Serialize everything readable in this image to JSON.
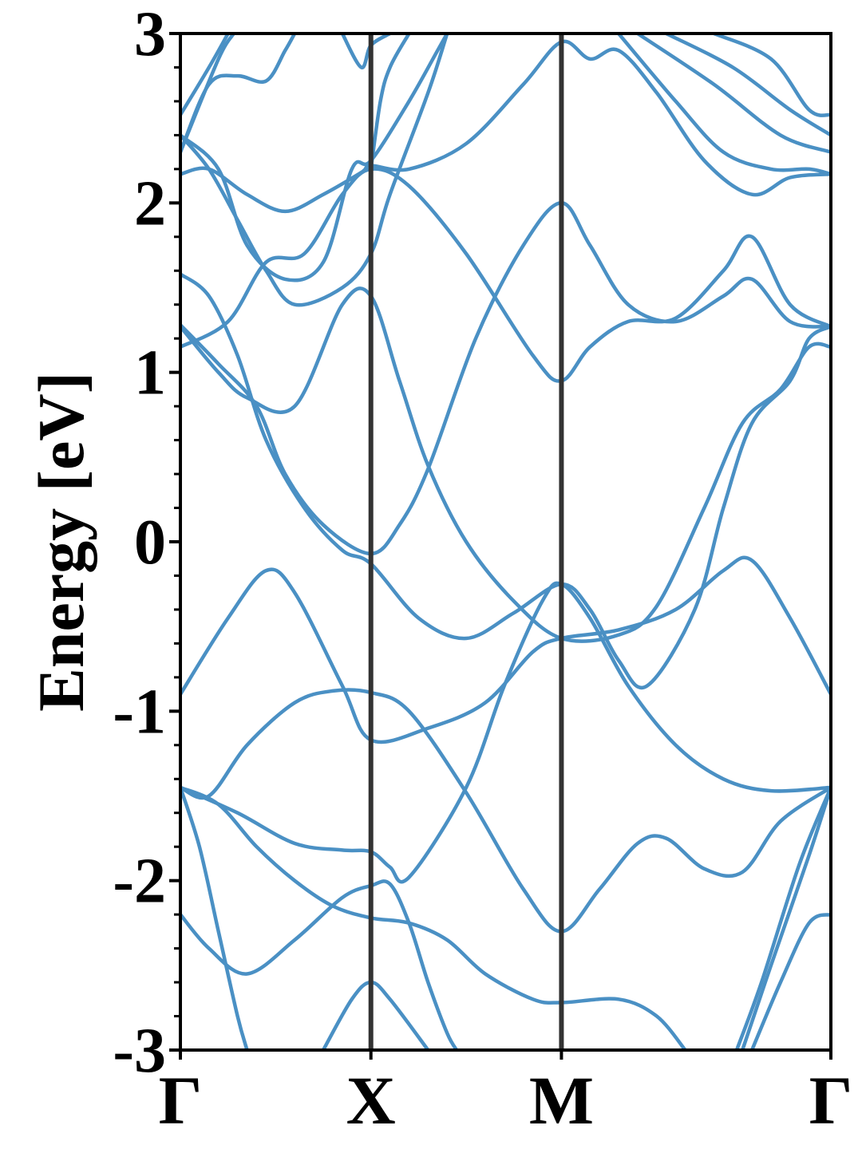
{
  "chart_data": {
    "type": "line",
    "ylabel": "Energy [eV]",
    "ylim": [
      -3,
      3
    ],
    "yticks": [
      {
        "value": 3,
        "label": "3"
      },
      {
        "value": 2,
        "label": "2"
      },
      {
        "value": 1,
        "label": "1"
      },
      {
        "value": 0,
        "label": "0"
      },
      {
        "value": -1,
        "label": "-1"
      },
      {
        "value": -2,
        "label": "-2"
      },
      {
        "value": -3,
        "label": "-3"
      }
    ],
    "xlim": [
      0,
      3.4142
    ],
    "kpoints": [
      {
        "label": "Γ",
        "x": 0
      },
      {
        "label": "X",
        "x": 1
      },
      {
        "label": "M",
        "x": 2
      },
      {
        "label": "Γ",
        "x": 3.4142
      }
    ],
    "line_color": "#4a90c4",
    "divider_color": "#333333",
    "series": [
      {
        "values": [
          [
            0,
            -0.9
          ],
          [
            0.25,
            -0.45
          ],
          [
            0.45,
            -0.17
          ],
          [
            0.6,
            -0.3
          ],
          [
            0.85,
            -0.85
          ],
          [
            1,
            -1.17
          ],
          [
            1.3,
            -1.1
          ],
          [
            1.6,
            -0.95
          ],
          [
            1.85,
            -0.65
          ],
          [
            2,
            -0.57
          ],
          [
            2.3,
            -0.52
          ],
          [
            2.6,
            -0.4
          ],
          [
            2.85,
            -0.17
          ],
          [
            3.0,
            -0.11
          ],
          [
            3.2,
            -0.45
          ],
          [
            3.4142,
            -0.9
          ]
        ]
      },
      {
        "values": [
          [
            0,
            -1.45
          ],
          [
            0.15,
            -1.5
          ],
          [
            0.35,
            -1.2
          ],
          [
            0.6,
            -0.95
          ],
          [
            0.8,
            -0.88
          ],
          [
            1,
            -0.89
          ],
          [
            1.2,
            -1.0
          ],
          [
            1.5,
            -1.48
          ],
          [
            1.8,
            -2.05
          ],
          [
            2,
            -2.3
          ],
          [
            2.2,
            -2.05
          ],
          [
            2.4,
            -1.78
          ],
          [
            2.55,
            -1.75
          ],
          [
            2.75,
            -1.93
          ],
          [
            2.95,
            -1.95
          ],
          [
            3.15,
            -1.65
          ],
          [
            3.4142,
            -1.45
          ]
        ]
      },
      {
        "values": [
          [
            0,
            -1.45
          ],
          [
            0.3,
            -1.6
          ],
          [
            0.6,
            -1.78
          ],
          [
            0.85,
            -1.82
          ],
          [
            1,
            -1.83
          ],
          [
            1.1,
            -1.92
          ],
          [
            1.2,
            -1.98
          ],
          [
            1.5,
            -1.45
          ],
          [
            1.7,
            -0.85
          ],
          [
            1.9,
            -0.35
          ],
          [
            2,
            -0.25
          ],
          [
            2.15,
            -0.45
          ],
          [
            2.35,
            -0.85
          ],
          [
            2.6,
            -1.2
          ],
          [
            2.85,
            -1.4
          ],
          [
            3.1,
            -1.47
          ],
          [
            3.4142,
            -1.45
          ]
        ]
      },
      {
        "values": [
          [
            0,
            -1.45
          ],
          [
            0.2,
            -1.55
          ],
          [
            0.4,
            -1.8
          ],
          [
            0.6,
            -2.0
          ],
          [
            0.8,
            -2.15
          ],
          [
            1,
            -2.22
          ],
          [
            1.2,
            -2.25
          ],
          [
            1.4,
            -2.35
          ],
          [
            1.6,
            -2.55
          ],
          [
            1.85,
            -2.7
          ],
          [
            2,
            -2.72
          ],
          [
            2.3,
            -2.7
          ],
          [
            2.5,
            -2.8
          ],
          [
            2.65,
            -3.0
          ]
        ]
      },
      {
        "values": [
          [
            0,
            -1.45
          ],
          [
            0.1,
            -1.8
          ],
          [
            0.2,
            -2.3
          ],
          [
            0.3,
            -2.8
          ],
          [
            0.35,
            -3.0
          ]
        ]
      },
      {
        "values": [
          [
            0,
            -2.2
          ],
          [
            0.15,
            -2.4
          ],
          [
            0.35,
            -2.55
          ],
          [
            0.6,
            -2.35
          ],
          [
            0.85,
            -2.1
          ],
          [
            1,
            -2.03
          ],
          [
            1.1,
            -2.02
          ],
          [
            1.2,
            -2.25
          ],
          [
            1.3,
            -2.6
          ],
          [
            1.4,
            -2.9
          ],
          [
            1.45,
            -3.0
          ]
        ]
      },
      {
        "values": [
          [
            0.75,
            -3.0
          ],
          [
            0.9,
            -2.7
          ],
          [
            1,
            -2.6
          ],
          [
            1.1,
            -2.7
          ],
          [
            1.3,
            -3.0
          ]
        ]
      },
      {
        "values": [
          [
            3.0,
            -3.0
          ],
          [
            3.15,
            -2.6
          ],
          [
            3.3,
            -2.25
          ],
          [
            3.4142,
            -2.2
          ]
        ]
      },
      {
        "values": [
          [
            2.95,
            -3.0
          ],
          [
            3.1,
            -2.5
          ],
          [
            3.3,
            -1.85
          ],
          [
            3.4142,
            -1.45
          ]
        ]
      },
      {
        "values": [
          [
            2.92,
            -3.0
          ],
          [
            3.05,
            -2.6
          ],
          [
            3.25,
            -1.9
          ],
          [
            3.4142,
            -1.45
          ]
        ]
      },
      {
        "values": [
          [
            0,
            1.28
          ],
          [
            0.2,
            1.05
          ],
          [
            0.4,
            0.8
          ],
          [
            0.55,
            0.4
          ],
          [
            0.75,
            0.1
          ],
          [
            1,
            -0.07
          ],
          [
            1.15,
            0.1
          ],
          [
            1.3,
            0.43
          ],
          [
            1.55,
            1.2
          ],
          [
            1.8,
            1.75
          ],
          [
            2,
            2.0
          ],
          [
            2.15,
            1.75
          ],
          [
            2.35,
            1.4
          ],
          [
            2.6,
            1.3
          ],
          [
            2.85,
            1.45
          ],
          [
            3.0,
            1.55
          ],
          [
            3.2,
            1.3
          ],
          [
            3.4142,
            1.27
          ]
        ]
      },
      {
        "values": [
          [
            0,
            1.58
          ],
          [
            0.15,
            1.45
          ],
          [
            0.3,
            1.1
          ],
          [
            0.45,
            0.6
          ],
          [
            0.65,
            0.2
          ],
          [
            0.85,
            -0.05
          ],
          [
            1,
            -0.13
          ],
          [
            1.25,
            -0.45
          ],
          [
            1.5,
            -0.57
          ],
          [
            1.75,
            -0.42
          ],
          [
            2,
            -0.25
          ],
          [
            2.15,
            -0.4
          ],
          [
            2.3,
            -0.7
          ],
          [
            2.45,
            -0.85
          ],
          [
            2.7,
            -0.4
          ],
          [
            2.85,
            0.2
          ],
          [
            3.0,
            0.7
          ],
          [
            3.2,
            0.95
          ],
          [
            3.3,
            1.2
          ],
          [
            3.4142,
            1.27
          ]
        ]
      },
      {
        "values": [
          [
            0,
            1.27
          ],
          [
            0.2,
            1.0
          ],
          [
            0.35,
            0.85
          ],
          [
            0.6,
            0.8
          ],
          [
            0.85,
            1.4
          ],
          [
            1,
            1.45
          ],
          [
            1.15,
            0.95
          ],
          [
            1.3,
            0.45
          ],
          [
            1.5,
            0.0
          ],
          [
            1.75,
            -0.35
          ],
          [
            2,
            -0.57
          ],
          [
            2.3,
            -0.55
          ],
          [
            2.5,
            -0.38
          ],
          [
            2.75,
            0.2
          ],
          [
            2.95,
            0.7
          ],
          [
            3.15,
            0.9
          ],
          [
            3.3,
            1.15
          ],
          [
            3.4142,
            1.15
          ]
        ]
      },
      {
        "values": [
          [
            0,
            1.15
          ],
          [
            0.25,
            1.3
          ],
          [
            0.45,
            1.65
          ],
          [
            0.65,
            1.7
          ],
          [
            0.85,
            2.05
          ],
          [
            1,
            2.2
          ],
          [
            1.2,
            2.1
          ],
          [
            1.5,
            1.7
          ],
          [
            1.85,
            1.1
          ],
          [
            2,
            0.95
          ],
          [
            2.15,
            1.15
          ],
          [
            2.35,
            1.3
          ],
          [
            2.6,
            1.32
          ],
          [
            2.85,
            1.6
          ],
          [
            3.0,
            1.8
          ],
          [
            3.2,
            1.4
          ],
          [
            3.4142,
            1.27
          ]
        ]
      },
      {
        "values": [
          [
            0,
            2.17
          ],
          [
            0.15,
            2.2
          ],
          [
            0.35,
            2.05
          ],
          [
            0.55,
            1.95
          ],
          [
            0.75,
            2.05
          ],
          [
            0.95,
            2.18
          ],
          [
            1,
            2.22
          ],
          [
            1.2,
            2.2
          ],
          [
            1.5,
            2.35
          ],
          [
            1.8,
            2.7
          ],
          [
            2,
            2.95
          ],
          [
            2.15,
            2.85
          ],
          [
            2.3,
            2.9
          ],
          [
            2.5,
            2.65
          ],
          [
            2.75,
            2.25
          ],
          [
            3.0,
            2.05
          ],
          [
            3.2,
            2.15
          ],
          [
            3.4142,
            2.17
          ]
        ]
      },
      {
        "values": [
          [
            0,
            2.4
          ],
          [
            0.15,
            2.2
          ],
          [
            0.3,
            1.9
          ],
          [
            0.45,
            1.6
          ],
          [
            0.6,
            1.4
          ],
          [
            0.85,
            1.5
          ],
          [
            1,
            1.7
          ],
          [
            1.1,
            2.05
          ],
          [
            1.3,
            2.65
          ],
          [
            1.4,
            3.0
          ]
        ]
      },
      {
        "values": [
          [
            0,
            2.4
          ],
          [
            0.2,
            2.2
          ],
          [
            0.35,
            1.75
          ],
          [
            0.55,
            1.55
          ],
          [
            0.75,
            1.65
          ],
          [
            0.9,
            2.2
          ],
          [
            1,
            2.25
          ],
          [
            1.2,
            2.6
          ],
          [
            1.35,
            2.9
          ],
          [
            1.4,
            3.0
          ]
        ]
      },
      {
        "values": [
          [
            0,
            2.3
          ],
          [
            0.15,
            2.7
          ],
          [
            0.3,
            2.75
          ],
          [
            0.45,
            2.72
          ],
          [
            0.55,
            2.9
          ],
          [
            0.6,
            3.0
          ]
        ]
      },
      {
        "values": [
          [
            0,
            2.52
          ],
          [
            0.15,
            2.8
          ],
          [
            0.25,
            3.0
          ]
        ]
      },
      {
        "values": [
          [
            0,
            2.3
          ],
          [
            0.2,
            2.85
          ],
          [
            0.28,
            3.0
          ]
        ]
      },
      {
        "values": [
          [
            1,
            2.2
          ],
          [
            1.05,
            2.6
          ],
          [
            1.1,
            2.8
          ],
          [
            1.2,
            3.0
          ]
        ]
      },
      {
        "values": [
          [
            0.85,
            3.0
          ],
          [
            0.95,
            2.8
          ],
          [
            1.0,
            2.93
          ],
          [
            1.1,
            3.0
          ]
        ]
      },
      {
        "values": [
          [
            2.3,
            3.0
          ],
          [
            2.6,
            2.6
          ],
          [
            2.85,
            2.3
          ],
          [
            3.1,
            2.2
          ],
          [
            3.3,
            2.2
          ],
          [
            3.4142,
            2.17
          ]
        ]
      },
      {
        "values": [
          [
            2.4,
            3.0
          ],
          [
            2.8,
            2.7
          ],
          [
            3.15,
            2.4
          ],
          [
            3.4142,
            2.3
          ]
        ]
      },
      {
        "values": [
          [
            2.55,
            3.0
          ],
          [
            2.9,
            2.8
          ],
          [
            3.2,
            2.55
          ],
          [
            3.4142,
            2.4
          ]
        ]
      },
      {
        "values": [
          [
            2.8,
            3.0
          ],
          [
            3.1,
            2.85
          ],
          [
            3.3,
            2.55
          ],
          [
            3.4142,
            2.52
          ]
        ]
      }
    ]
  }
}
